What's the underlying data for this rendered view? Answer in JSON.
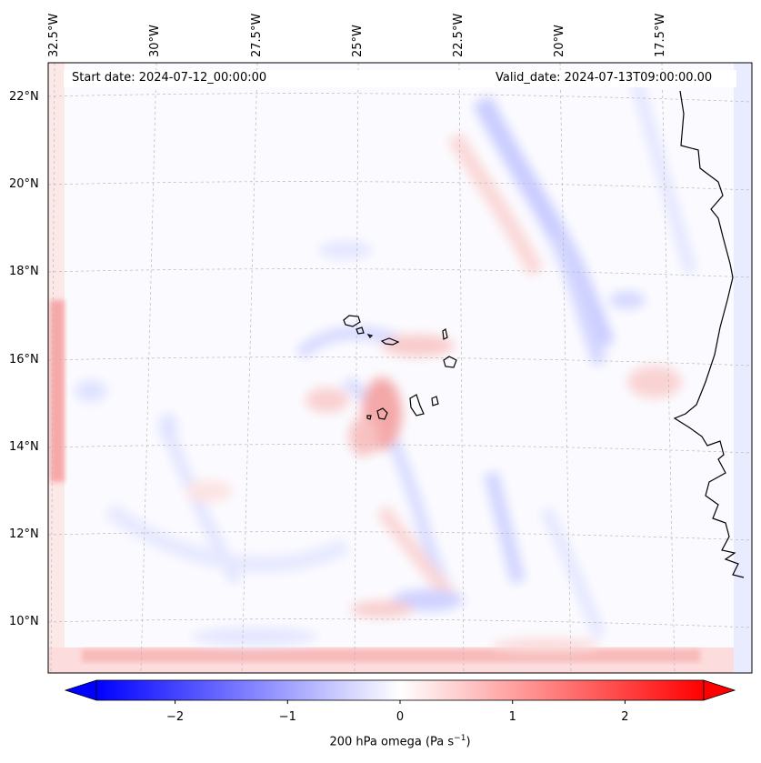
{
  "map": {
    "title_left": "Start date: 2024-07-12_00:00:00",
    "title_right": "Valid_date: 2024-07-13T09:00:00.00",
    "lon_labels": [
      "32.5°W",
      "30°W",
      "27.5°W",
      "25°W",
      "22.5°W",
      "20°W",
      "17.5°W"
    ],
    "lat_labels": [
      "22°N",
      "20°N",
      "18°N",
      "16°N",
      "14°N",
      "12°N",
      "10°N"
    ],
    "islands": [
      "Santo Antão",
      "São Vicente",
      "Santa Luzia",
      "São Nicolau",
      "Sal",
      "Boa Vista",
      "Maio",
      "Santiago",
      "Fogo",
      "Brava"
    ]
  },
  "colorbar": {
    "label": "200 hPa omega (Pa s",
    "label_sup": "−1",
    "label_end": ")",
    "ticks": [
      "−2",
      "−1",
      "0",
      "1",
      "2"
    ],
    "tick_values": [
      -2,
      -1,
      0,
      1,
      2
    ],
    "vmin": -2.7,
    "vmax": 2.7,
    "colors": {
      "low": "#0000ff",
      "mid": "#ffffff",
      "high": "#ff0000"
    }
  }
}
